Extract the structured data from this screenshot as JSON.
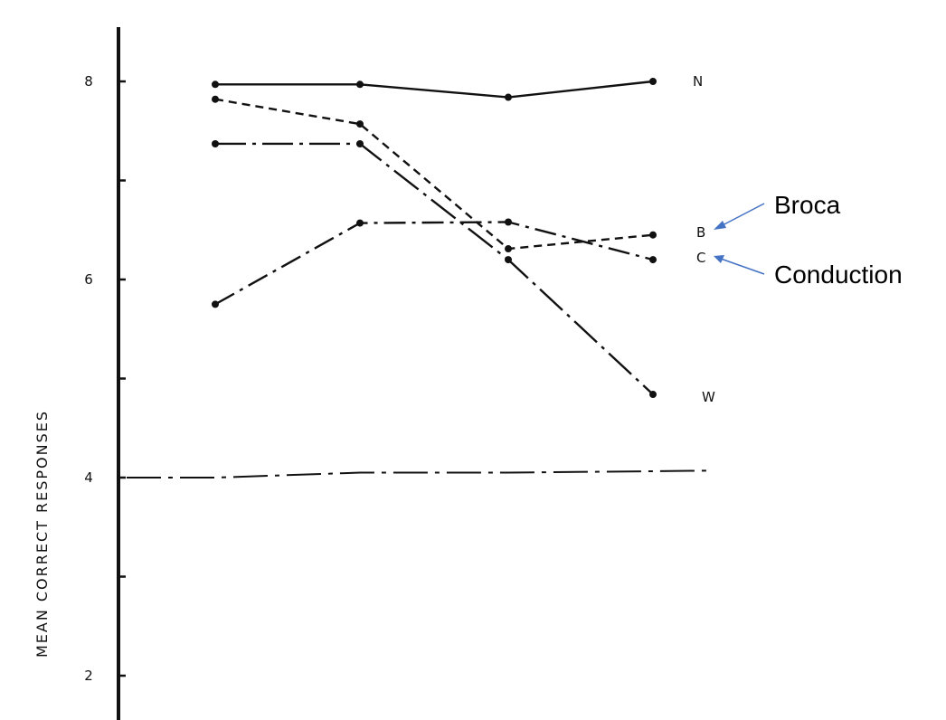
{
  "chart_data": {
    "type": "line",
    "title": "",
    "xlabel": "",
    "ylabel": "MEAN CORRECT RESPONSES",
    "ylim": [
      1.6,
      8.5
    ],
    "yticks": [
      2,
      3,
      4,
      5,
      6,
      7,
      8
    ],
    "ytick_labels": [
      {
        "value": 2,
        "label": "2"
      },
      {
        "value": 4,
        "label": "4"
      },
      {
        "value": 6,
        "label": "6"
      },
      {
        "value": 8,
        "label": "8"
      }
    ],
    "x": [
      1,
      2,
      3,
      4
    ],
    "xlim": [
      0.4,
      4.5
    ],
    "grid": false,
    "series": [
      {
        "name": "N",
        "style": "solid",
        "values": [
          7.97,
          7.97,
          7.84,
          8.0
        ]
      },
      {
        "name": "B",
        "style": "dashed",
        "values": [
          7.82,
          7.57,
          6.31,
          6.45
        ]
      },
      {
        "name": "C",
        "style": "dashdot",
        "values": [
          5.75,
          6.57,
          6.58,
          6.2
        ]
      },
      {
        "name": "W",
        "style": "longdashdot",
        "values": [
          7.37,
          7.37,
          6.2,
          4.84
        ]
      }
    ],
    "reference_line": {
      "style": "dashdot",
      "values": [
        4.0,
        4.05,
        4.05,
        4.07
      ]
    },
    "annotations": [
      {
        "text": "Broca",
        "target": "B"
      },
      {
        "text": "Conduction",
        "target": "C"
      }
    ],
    "colors": {
      "ink": "#111111",
      "annotation_arrow": "#4472c4"
    }
  }
}
